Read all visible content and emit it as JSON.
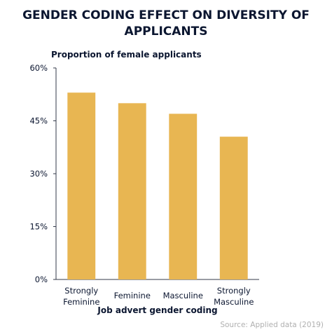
{
  "chart_data": {
    "type": "bar",
    "title_lines": [
      "GENDER CODING EFFECT ON DIVERSITY OF",
      "APPLICANTS"
    ],
    "ylabel": "Proportion of female applicants",
    "xlabel": "Job advert gender coding",
    "categories": [
      [
        "Strongly",
        "Feminine"
      ],
      [
        "Feminine"
      ],
      [
        "Masculine"
      ],
      [
        "Strongly",
        "Masculine"
      ]
    ],
    "values": [
      53,
      50,
      47,
      40.5
    ],
    "ylim": [
      0,
      60
    ],
    "yticks": [
      0,
      15,
      30,
      45,
      60
    ],
    "ytick_labels": [
      "0%",
      "15%",
      "30%",
      "45%",
      "60%"
    ],
    "grid": false,
    "bar_color": "#e8b652",
    "source": "Source: Applied data (2019)"
  }
}
